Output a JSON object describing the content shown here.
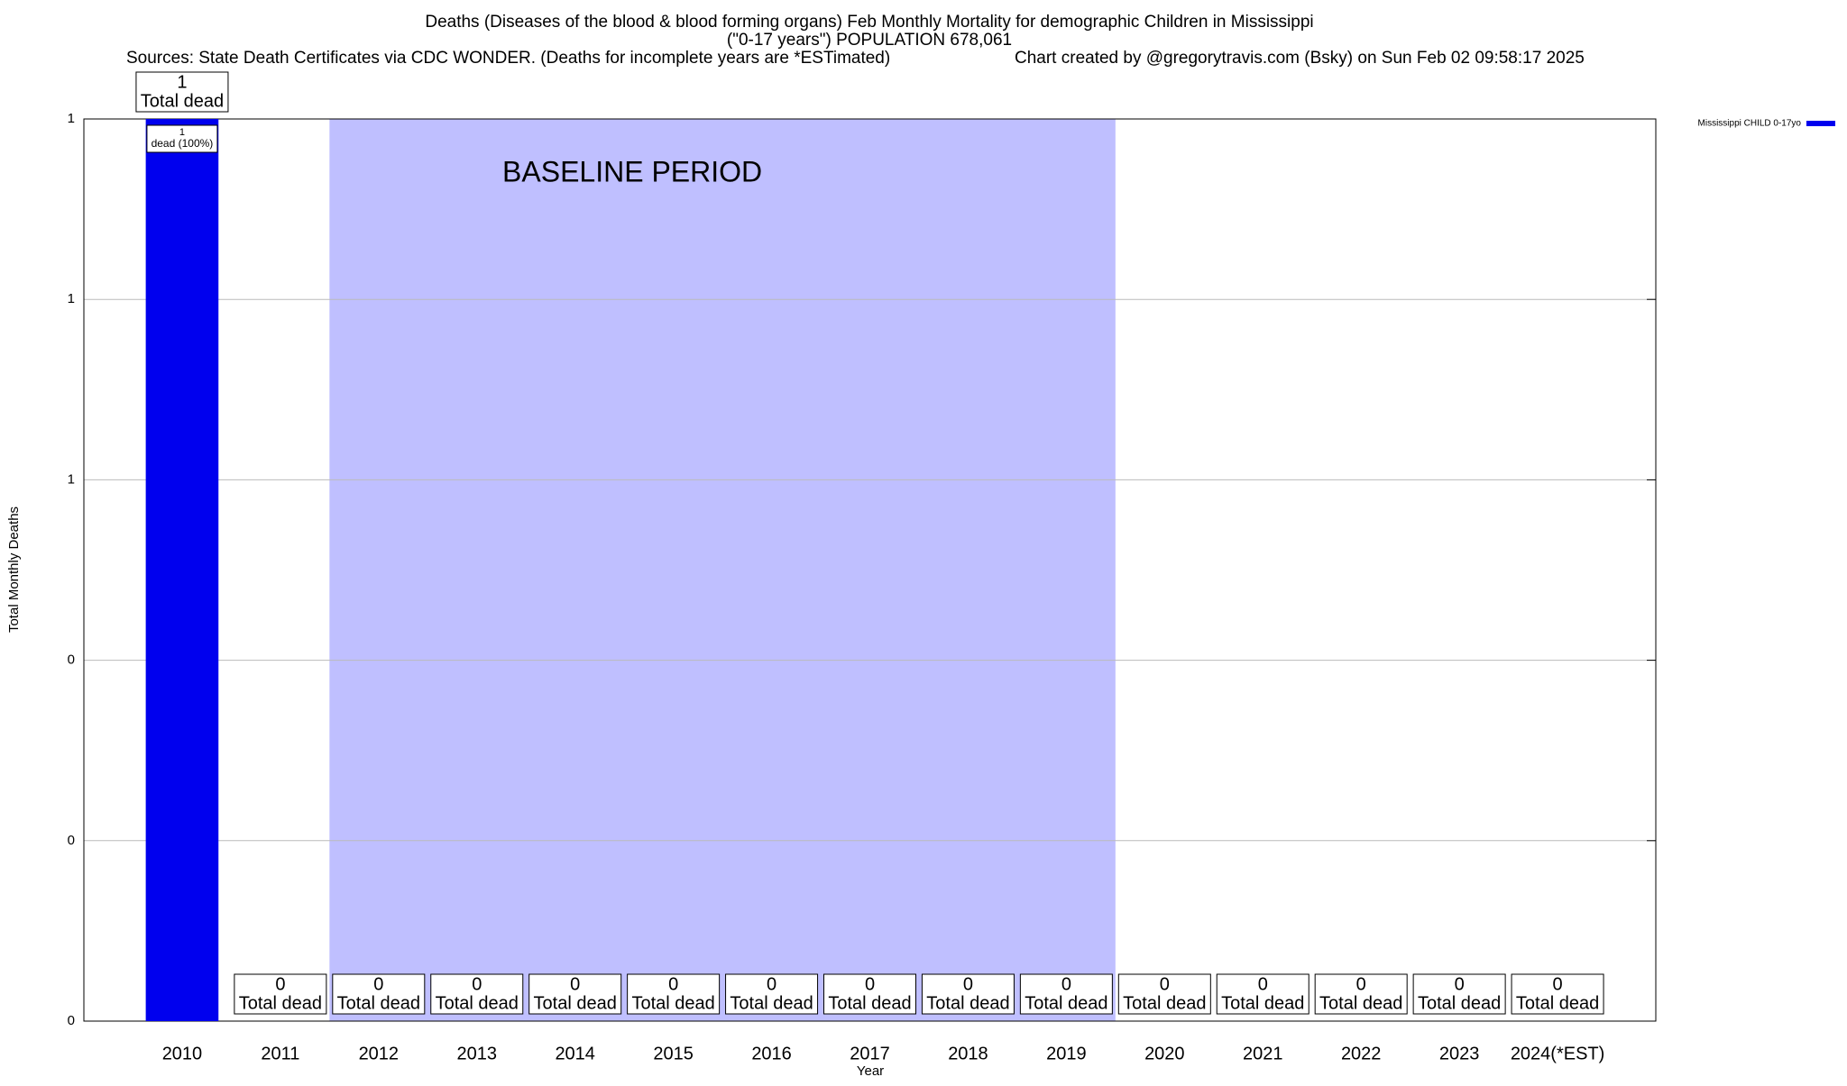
{
  "chart_data": {
    "type": "bar",
    "title": "Deaths (Diseases of the blood & blood forming organs) Feb Monthly Mortality for demographic Children in Mississippi",
    "subtitle": "(\"0-17 years\") POPULATION 678,061",
    "source": "Sources: State Death Certificates via CDC WONDER. (Deaths for incomplete years are *ESTimated)",
    "credit": "Chart created by @gregorytravis.com (Bsky) on Sun Feb 02 09:58:17 2025",
    "x_label": "Year",
    "y_label": "Total Monthly Deaths",
    "categories": [
      "2010",
      "2011",
      "2012",
      "2013",
      "2014",
      "2015",
      "2016",
      "2017",
      "2018",
      "2019",
      "2020",
      "2021",
      "2022",
      "2023",
      "2024(*EST)"
    ],
    "series": [
      {
        "name": "Mississippi CHILD 0-17yo",
        "color": "#0000ee",
        "values": [
          1,
          0,
          0,
          0,
          0,
          0,
          0,
          0,
          0,
          0,
          0,
          0,
          0,
          0,
          0
        ]
      }
    ],
    "total_label": "Total dead",
    "inner_labels": [
      "dead (100%)",
      null,
      null,
      null,
      null,
      null,
      null,
      null,
      null,
      null,
      null,
      null,
      null,
      null,
      null
    ],
    "baseline": {
      "label": "BASELINE PERIOD",
      "start": "2012",
      "end": "2019",
      "color": "#bfbfff"
    },
    "ylim": [
      0,
      1
    ],
    "yticks": [
      0,
      {
        "value": 0.2,
        "label": "0"
      },
      {
        "value": 0.4,
        "label": "0"
      },
      {
        "value": 0.6,
        "label": "1"
      },
      {
        "value": 0.8,
        "label": "1"
      },
      1
    ],
    "grid": true,
    "legend": "outside-top-right"
  }
}
